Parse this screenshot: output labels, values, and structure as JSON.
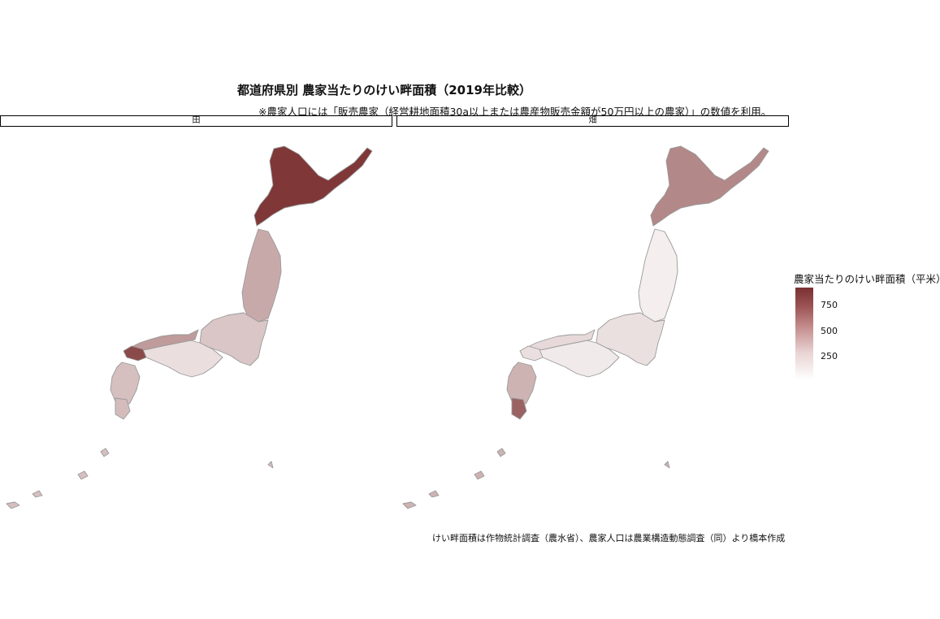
{
  "title": "都道府県別 農家当たりのけい畔面積（2019年比較）",
  "subtitle": "※農家人口には「販売農家（経営耕地面積30a以上または農産物販売金額が50万円以上の農家）」の数値を利用。",
  "facets": [
    {
      "label": "田",
      "hokkaido": 900,
      "honshu_north": 420,
      "honshu_central": 300,
      "kinki_shikoku": 200,
      "chugoku_west": 480,
      "yamaguchi": 820,
      "kyushu": 330,
      "kagoshima": 340
    },
    {
      "label": "畑",
      "hokkaido": 560,
      "honshu_north": 130,
      "honshu_central": 190,
      "kinki_shikoku": 150,
      "chugoku_west": 220,
      "yamaguchi": 200,
      "kyushu": 380,
      "kagoshima": 720
    }
  ],
  "legend": {
    "title": "農家当たりのけい畔面積（平米）",
    "ticks": [
      {
        "value": 750,
        "label": "750"
      },
      {
        "value": 500,
        "label": "500"
      },
      {
        "value": 250,
        "label": "250"
      }
    ],
    "range": [
      60,
      930
    ],
    "color_low": "#ffffff",
    "color_high": "#7a3030"
  },
  "caption": "けい畔面積は作物統計調査（農水省）、農家人口は農業構造動態調査（同）より橋本作成"
}
